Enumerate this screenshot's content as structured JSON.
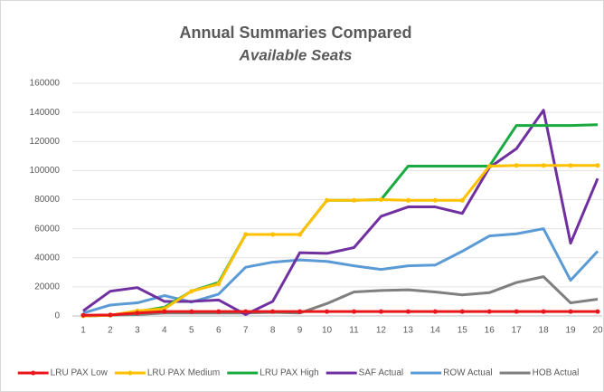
{
  "chart_data": {
    "type": "line",
    "title": "Annual Summaries Compared",
    "subtitle": "Available Seats",
    "categories": [
      "1",
      "2",
      "3",
      "4",
      "5",
      "6",
      "7",
      "8",
      "9",
      "10",
      "11",
      "12",
      "13",
      "14",
      "15",
      "16",
      "17",
      "18",
      "19",
      "20"
    ],
    "ylim": [
      0,
      160000
    ],
    "yticks": [
      0,
      20000,
      40000,
      60000,
      80000,
      100000,
      120000,
      140000,
      160000
    ],
    "grid": true,
    "legend": "bottom",
    "series": [
      {
        "name": "LRU PAX Low",
        "color": "#e8161b",
        "marker": true,
        "values": [
          500,
          700,
          2000,
          3000,
          3000,
          3000,
          3000,
          3000,
          3000,
          3000,
          3000,
          3000,
          3000,
          3000,
          3000,
          3000,
          3000,
          3000,
          3000,
          3000
        ]
      },
      {
        "name": "LRU PAX Medium",
        "color": "#ffc000",
        "marker": true,
        "values": [
          0,
          500,
          3500,
          5000,
          17000,
          22000,
          56000,
          56000,
          56000,
          79500,
          79500,
          80000,
          79500,
          79500,
          79500,
          103000,
          103500,
          103500,
          103500,
          103500
        ]
      },
      {
        "name": "LRU PAX High",
        "color": "#1aab40",
        "marker": false,
        "values": [
          0,
          500,
          3000,
          6000,
          17000,
          23000,
          56000,
          56000,
          56000,
          79500,
          79500,
          80000,
          103000,
          103000,
          103000,
          103000,
          131000,
          131000,
          131000,
          131500
        ]
      },
      {
        "name": "SAF Actual",
        "color": "#7030a0",
        "marker": false,
        "values": [
          3500,
          17000,
          19500,
          10000,
          10000,
          11000,
          1000,
          10000,
          43500,
          43000,
          47000,
          68500,
          75000,
          75000,
          70500,
          102000,
          115000,
          141500,
          50000,
          94500
        ]
      },
      {
        "name": "ROW Actual",
        "color": "#5b9bd5",
        "marker": false,
        "values": [
          2000,
          7500,
          9000,
          14000,
          9500,
          15000,
          33500,
          37000,
          38500,
          37500,
          34500,
          32000,
          34500,
          35000,
          44500,
          55000,
          56500,
          60000,
          24500,
          44500
        ]
      },
      {
        "name": "HOB Actual",
        "color": "#7f7f7f",
        "marker": false,
        "values": [
          0,
          500,
          1000,
          2000,
          2000,
          2000,
          2000,
          2500,
          2000,
          8500,
          16500,
          17500,
          18000,
          16500,
          14500,
          16000,
          23000,
          27000,
          9000,
          11500
        ]
      }
    ]
  }
}
